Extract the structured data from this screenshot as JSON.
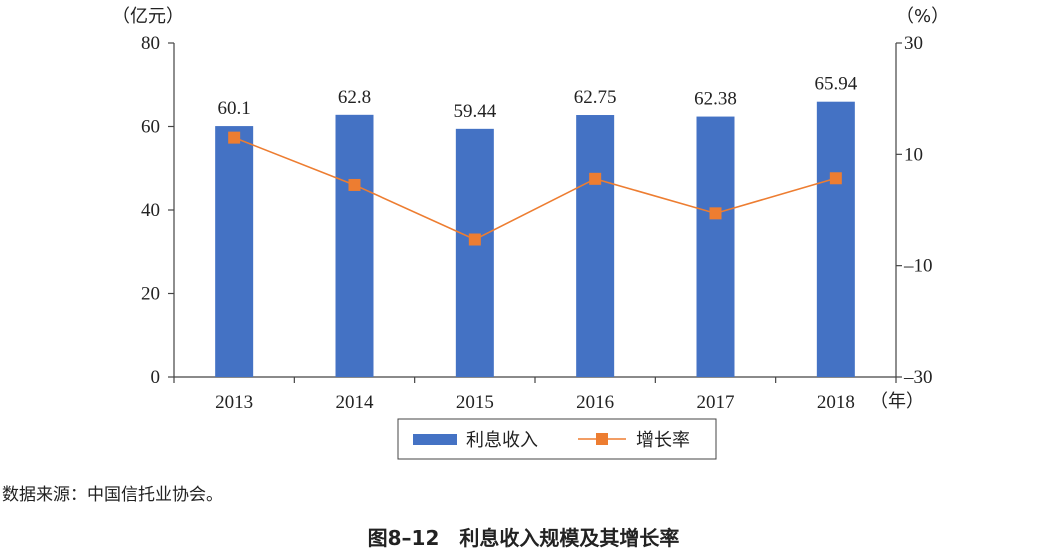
{
  "caption": "图8–12　利息收入规模及其增长率",
  "source": "数据来源：中国信托业协会。",
  "chart_data": {
    "type": "bar",
    "categories": [
      "2013",
      "2014",
      "2015",
      "2016",
      "2017",
      "2018"
    ],
    "x_unit": "（年）",
    "y_left": {
      "unit": "（亿元）",
      "range": [
        0,
        80
      ],
      "ticks": [
        "0",
        "20",
        "40",
        "60",
        "80"
      ]
    },
    "y_right": {
      "unit": "（%）",
      "range": [
        -30,
        30
      ],
      "ticks": [
        "–30",
        "–10",
        "10",
        "30"
      ]
    },
    "series": [
      {
        "name": "利息收入",
        "type": "bar",
        "axis": "left",
        "color": "#4472C4",
        "values": [
          60.1,
          62.8,
          59.44,
          62.75,
          62.38,
          65.94
        ],
        "labels": [
          "60.1",
          "62.8",
          "59.44",
          "62.75",
          "62.38",
          "65.94"
        ]
      },
      {
        "name": "增长率",
        "type": "line",
        "axis": "right",
        "color": "#ED7D31",
        "values": [
          13.0,
          4.5,
          -5.3,
          5.6,
          -0.6,
          5.7
        ]
      }
    ],
    "legend_position": "bottom",
    "grid": false
  }
}
